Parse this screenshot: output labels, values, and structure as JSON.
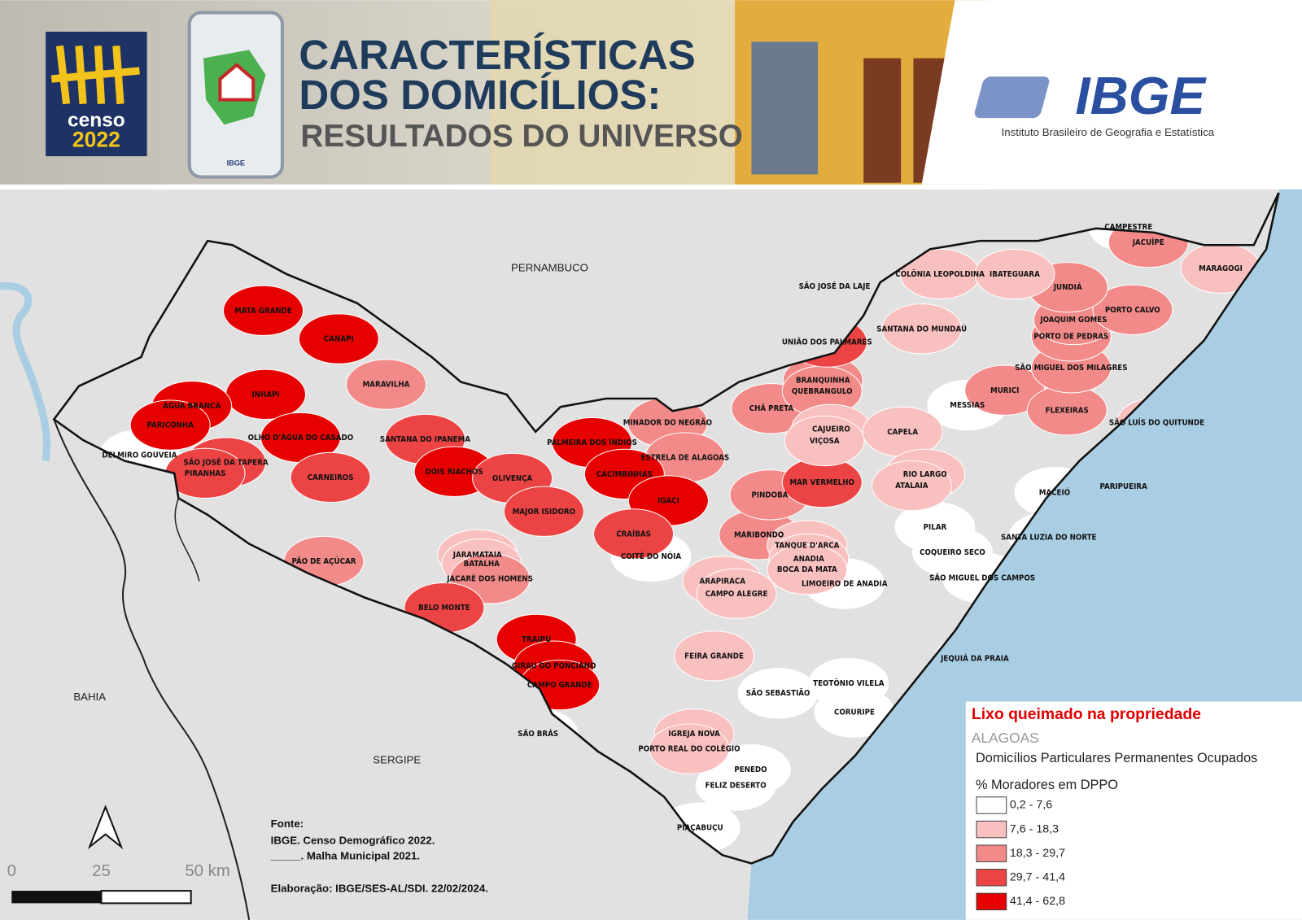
{
  "header": {
    "census_logo": [
      "censo",
      "2022"
    ],
    "title_lines": [
      "CARACTERÍSTICAS",
      "DOS DOMICÍLIOS:",
      "RESULTADOS DO UNIVERSO"
    ],
    "phone_logo": "IBGE",
    "ibge_logo": "IBGE",
    "ibge_name": "Instituto Brasileiro de Geografia e Estatística"
  },
  "map": {
    "neighbors": [
      "PERNAMBUCO",
      "BAHIA",
      "SERGIPE"
    ],
    "municipalities": [
      {
        "name": "MATA GRANDE",
        "fill": "#e60000"
      },
      {
        "name": "CANAPI",
        "fill": "#e60000"
      },
      {
        "name": "INHAPI",
        "fill": "#e60000"
      },
      {
        "name": "MARAVILHA",
        "fill": "#f28a8a"
      },
      {
        "name": "ÁGUA BRANCA",
        "fill": "#e60000"
      },
      {
        "name": "PARICONHA",
        "fill": "#e60000"
      },
      {
        "name": "DELMIRO GOUVEIA",
        "fill": "#ffffff"
      },
      {
        "name": "OLHO D'ÁGUA DO CASADO",
        "fill": "#e60000"
      },
      {
        "name": "SANTANA DO IPANEMA",
        "fill": "#ec4444"
      },
      {
        "name": "SÃO JOSÉ DA TAPERA",
        "fill": "#ec4444"
      },
      {
        "name": "PIRANHAS",
        "fill": "#ec4444"
      },
      {
        "name": "CARNEIROS",
        "fill": "#ec4444"
      },
      {
        "name": "DOIS RIACHOS",
        "fill": "#e60000"
      },
      {
        "name": "OLIVENÇA",
        "fill": "#ec4444"
      },
      {
        "name": "PALMEIRA DOS ÍNDIOS",
        "fill": "#e60000"
      },
      {
        "name": "MINADOR DO NEGRÃO",
        "fill": "#f28a8a"
      },
      {
        "name": "ESTRELA DE ALAGOAS",
        "fill": "#f28a8a"
      },
      {
        "name": "CACIMBINHAS",
        "fill": "#e60000"
      },
      {
        "name": "IGACI",
        "fill": "#e60000"
      },
      {
        "name": "MAJOR ISIDORO",
        "fill": "#ec4444"
      },
      {
        "name": "CRAÍBAS",
        "fill": "#ec4444"
      },
      {
        "name": "COITÉ DO NÓIA",
        "fill": "#ffffff"
      },
      {
        "name": "JARAMATAIA",
        "fill": "#f9c0c0"
      },
      {
        "name": "BATALHA",
        "fill": "#f9c0c0"
      },
      {
        "name": "JACARÉ DOS HOMENS",
        "fill": "#f28a8a"
      },
      {
        "name": "PÃO DE AÇÚCAR",
        "fill": "#f28a8a"
      },
      {
        "name": "BELO MONTE",
        "fill": "#ec4444"
      },
      {
        "name": "TRAIPU",
        "fill": "#e60000"
      },
      {
        "name": "GIRAU DO PONCIANO",
        "fill": "#e60000"
      },
      {
        "name": "CAMPO GRANDE",
        "fill": "#e60000"
      },
      {
        "name": "SÃO BRÁS",
        "fill": "#ffffff"
      },
      {
        "name": "ARAPIRACA",
        "fill": "#f9c0c0"
      },
      {
        "name": "CAMPO ALEGRE",
        "fill": "#f9c0c0"
      },
      {
        "name": "MARIBONDO",
        "fill": "#f28a8a"
      },
      {
        "name": "TANQUE D'ARCA",
        "fill": "#f9c0c0"
      },
      {
        "name": "ANADIA",
        "fill": "#f9c0c0"
      },
      {
        "name": "BOCA DA MATA",
        "fill": "#f9c0c0"
      },
      {
        "name": "LIMOEIRO DE ANADIA",
        "fill": "#ffffff"
      },
      {
        "name": "PINDOBA",
        "fill": "#f28a8a"
      },
      {
        "name": "MAR VERMELHO",
        "fill": "#ec4444"
      },
      {
        "name": "CHÃ PRETA",
        "fill": "#f28a8a"
      },
      {
        "name": "BRANQUINHA",
        "fill": "#f28a8a"
      },
      {
        "name": "QUEBRANGULO",
        "fill": "#f28a8a"
      },
      {
        "name": "CAJUEIRO",
        "fill": "#f9c0c0"
      },
      {
        "name": "VIÇOSA",
        "fill": "#f9c0c0"
      },
      {
        "name": "CAPELA",
        "fill": "#f9c0c0"
      },
      {
        "name": "RIO LARGO",
        "fill": "#f9c0c0"
      },
      {
        "name": "ATALAIA",
        "fill": "#f9c0c0"
      },
      {
        "name": "MESSIAS",
        "fill": "#ffffff"
      },
      {
        "name": "MURICI",
        "fill": "#f28a8a"
      },
      {
        "name": "FLEXEIRAS",
        "fill": "#f28a8a"
      },
      {
        "name": "SÃO LUÍS DO QUITUNDE",
        "fill": "#f9c0c0"
      },
      {
        "name": "SÃO MIGUEL DOS MILAGRES",
        "fill": "#f28a8a"
      },
      {
        "name": "PORTO DE PEDRAS",
        "fill": "#f28a8a"
      },
      {
        "name": "JOAQUIM GOMES",
        "fill": "#f28a8a"
      },
      {
        "name": "PORTO CALVO",
        "fill": "#f28a8a"
      },
      {
        "name": "JUNDIÁ",
        "fill": "#f28a8a"
      },
      {
        "name": "MARAGOGI",
        "fill": "#f9c0c0"
      },
      {
        "name": "JACUÍPE",
        "fill": "#f28a8a"
      },
      {
        "name": "CAMPESTRE",
        "fill": "#ffffff"
      },
      {
        "name": "COLÔNIA LEOPOLDINA",
        "fill": "#f9c0c0"
      },
      {
        "name": "IBATEGUARA",
        "fill": "#f9c0c0"
      },
      {
        "name": "SÃO JOSÉ DA LAJE",
        "fill": "#f9c0c0"
      },
      {
        "name": "SANTANA DO MUNDAÚ",
        "fill": "#f9c0c0"
      },
      {
        "name": "UNIÃO DOS PALMARES",
        "fill": "#ec4444"
      },
      {
        "name": "MACEIÓ",
        "fill": "#ffffff"
      },
      {
        "name": "PARIPUEIRA",
        "fill": "#ffffff"
      },
      {
        "name": "PILAR",
        "fill": "#ffffff"
      },
      {
        "name": "SANTA LUZIA DO NORTE",
        "fill": "#ffffff"
      },
      {
        "name": "COQUEIRO SECO",
        "fill": "#ffffff"
      },
      {
        "name": "SÃO MIGUEL DOS CAMPOS",
        "fill": "#ffffff"
      },
      {
        "name": "JEQUIÁ DA PRAIA",
        "fill": "#ffffff"
      },
      {
        "name": "FEIRA GRANDE",
        "fill": "#f9c0c0"
      },
      {
        "name": "SÃO SEBASTIÃO",
        "fill": "#ffffff"
      },
      {
        "name": "TEOTÔNIO VILELA",
        "fill": "#ffffff"
      },
      {
        "name": "CORURIPE",
        "fill": "#ffffff"
      },
      {
        "name": "IGREJA NOVA",
        "fill": "#f9c0c0"
      },
      {
        "name": "PORTO REAL DO COLÉGIO",
        "fill": "#f9c0c0"
      },
      {
        "name": "PENEDO",
        "fill": "#ffffff"
      },
      {
        "name": "FELIZ DESERTO",
        "fill": "#ffffff"
      },
      {
        "name": "PIAÇABUÇU",
        "fill": "#ffffff"
      }
    ],
    "legend": {
      "title": "Lixo queimado na propriedade",
      "region": "ALAGOAS",
      "universe": "Domicílios Particulares Permanentes Ocupados",
      "measure": "% Moradores em DPPO",
      "classes": [
        {
          "label": "0,2 - 7,6",
          "color": "#ffffff"
        },
        {
          "label": "7,6 - 18,3",
          "color": "#f9c0c0"
        },
        {
          "label": "18,3 - 29,7",
          "color": "#f28a8a"
        },
        {
          "label": "29,7 - 41,4",
          "color": "#ec4444"
        },
        {
          "label": "41,4 - 62,8",
          "color": "#e60000"
        }
      ]
    },
    "source": [
      "Fonte:",
      "IBGE. Censo Demográfico 2022.",
      "_____. Malha Municipal 2021.",
      "Elaboração: IBGE/SES-AL/SDI. 22/02/2024."
    ],
    "scale": [
      "0",
      "25",
      "50 km"
    ]
  }
}
